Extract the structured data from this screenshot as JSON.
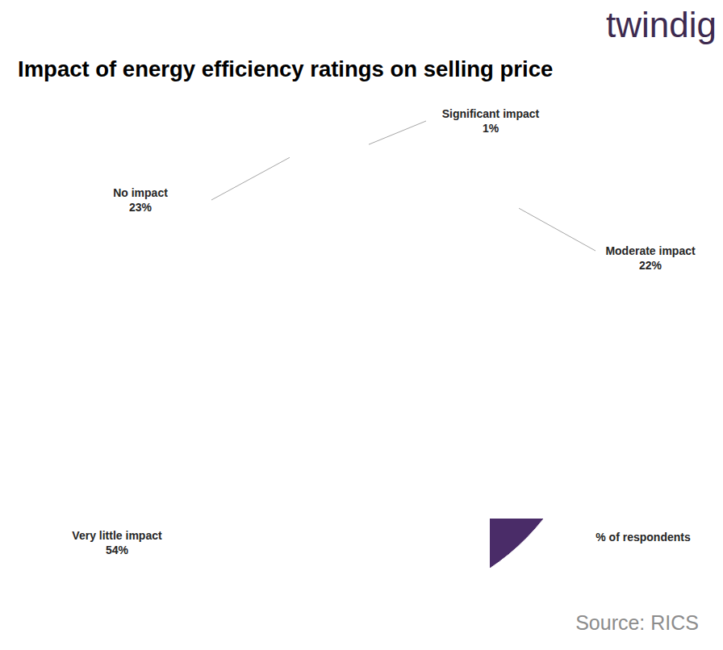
{
  "chart_data": {
    "type": "pie",
    "title": "Impact of energy efficiency ratings on selling price",
    "logo": "twindig",
    "source": "Source: RICS",
    "annotations": [
      "% of respondents"
    ],
    "categories": [
      "Significant impact",
      "Moderate impact",
      "Very little impact",
      "No impact"
    ],
    "values": [
      1,
      22,
      54,
      23
    ],
    "value_labels": [
      "1%",
      "22%",
      "54%",
      "23%"
    ],
    "colors": [
      "#a6a6a6",
      "#16b3aa",
      "#4a2c68",
      "#862340"
    ],
    "data_labels": true
  }
}
